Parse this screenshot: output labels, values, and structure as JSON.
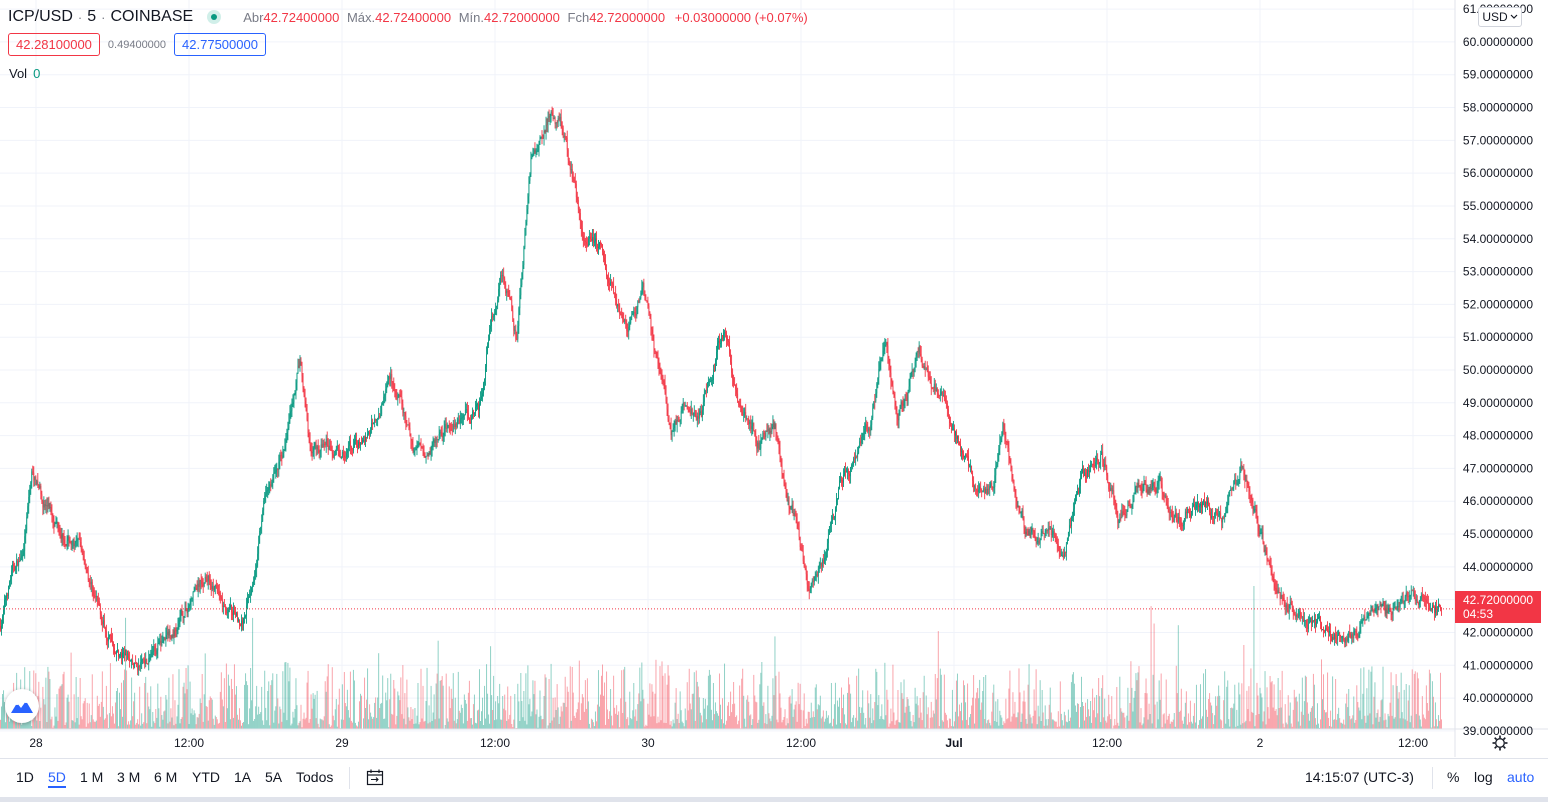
{
  "header": {
    "symbol": "ICP/USD",
    "sep1": "·",
    "interval": "5",
    "sep2": "·",
    "exchange": "COINBASE",
    "open_label": "Abr",
    "open": "42.72400000",
    "high_label": "Máx.",
    "high": "42.72400000",
    "low_label": "Mín.",
    "low": "42.72000000",
    "close_label": "Fch",
    "close": "42.72000000",
    "change": "+0.03000000 (+0.07%)"
  },
  "bid": "42.28100000",
  "spread": "0.49400000",
  "ask": "42.77500000",
  "volume": {
    "label": "Vol",
    "value": "0"
  },
  "currency": "USD",
  "last_price": {
    "value": "42.72000000",
    "countdown": "04:53"
  },
  "bottom": {
    "ranges": [
      "1D",
      "5D",
      "1 M",
      "3 M",
      "6 M",
      "YTD",
      "1A",
      "5A",
      "Todos"
    ],
    "active_range": "5D",
    "time": "14:15:07 (UTC-3)",
    "percent": "%",
    "log": "log",
    "auto": "auto"
  },
  "colors": {
    "up": "#089981",
    "down": "#f23645",
    "accent": "#2962ff"
  },
  "chart_data": {
    "type": "candlestick",
    "y_ticks": [
      "39.00000000",
      "40.00000000",
      "41.00000000",
      "42.00000000",
      "43.00000000",
      "44.00000000",
      "45.00000000",
      "46.00000000",
      "47.00000000",
      "48.00000000",
      "49.00000000",
      "50.00000000",
      "51.00000000",
      "52.00000000",
      "53.00000000",
      "54.00000000",
      "55.00000000",
      "56.00000000",
      "57.00000000",
      "58.00000000",
      "59.00000000",
      "60.00000000",
      "61.00000000"
    ],
    "x_ticks": [
      "28",
      "12:00",
      "29",
      "12:00",
      "30",
      "12:00",
      "Jul",
      "12:00",
      "2",
      "12:00"
    ],
    "ylim": [
      38.6,
      61.4
    ],
    "last_value": 42.72,
    "price_path": [
      [
        0,
        42.2
      ],
      [
        0.8,
        43.8
      ],
      [
        1.5,
        44.3
      ],
      [
        2.2,
        46.9
      ],
      [
        3.0,
        46.0
      ],
      [
        4.3,
        45.2
      ],
      [
        5.7,
        44.3
      ],
      [
        7.0,
        42.4
      ],
      [
        8.3,
        41.2
      ],
      [
        9.3,
        40.9
      ],
      [
        10.7,
        41.6
      ],
      [
        12.2,
        42.2
      ],
      [
        13.2,
        43.2
      ],
      [
        14.2,
        43.7
      ],
      [
        15.3,
        42.7
      ],
      [
        16.5,
        42.3
      ],
      [
        17.2,
        43.7
      ],
      [
        18.0,
        46.0
      ],
      [
        19.4,
        47.7
      ],
      [
        20.4,
        50.3
      ],
      [
        21.1,
        47.5
      ],
      [
        22.2,
        47.8
      ],
      [
        23.6,
        47.5
      ],
      [
        25.2,
        47.9
      ],
      [
        26.6,
        49.9
      ],
      [
        28.1,
        47.6
      ],
      [
        29.7,
        47.9
      ],
      [
        31.4,
        48.7
      ],
      [
        32.6,
        48.8
      ],
      [
        33.4,
        51.2
      ],
      [
        34.2,
        53.1
      ],
      [
        35.2,
        51.0
      ],
      [
        36.2,
        56.6
      ],
      [
        37.4,
        57.8
      ],
      [
        38.3,
        57.5
      ],
      [
        39.6,
        54.3
      ],
      [
        40.9,
        53.8
      ],
      [
        41.5,
        52.8
      ],
      [
        42.8,
        51.2
      ],
      [
        43.8,
        52.3
      ],
      [
        44.9,
        50.2
      ],
      [
        45.7,
        48.2
      ],
      [
        46.6,
        49.0
      ],
      [
        47.8,
        48.7
      ],
      [
        49.3,
        51.4
      ],
      [
        50.3,
        49.0
      ],
      [
        51.7,
        47.8
      ],
      [
        52.8,
        48.3
      ],
      [
        53.4,
        46.5
      ],
      [
        54.4,
        45.0
      ],
      [
        55.1,
        43.2
      ],
      [
        56.2,
        44.3
      ],
      [
        57.2,
        46.5
      ],
      [
        58.4,
        47.5
      ],
      [
        59.3,
        48.2
      ],
      [
        60.3,
        50.9
      ],
      [
        61.1,
        48.4
      ],
      [
        62.6,
        50.5
      ],
      [
        64.0,
        49.3
      ],
      [
        65.5,
        47.6
      ],
      [
        66.4,
        46.5
      ],
      [
        67.6,
        46.2
      ],
      [
        68.3,
        48.2
      ],
      [
        69.1,
        46.4
      ],
      [
        70.0,
        44.8
      ],
      [
        71.5,
        45.1
      ],
      [
        72.4,
        44.2
      ],
      [
        73.6,
        46.7
      ],
      [
        75.0,
        47.4
      ],
      [
        76.2,
        45.5
      ],
      [
        77.6,
        46.6
      ],
      [
        79.0,
        46.5
      ],
      [
        80.2,
        45.5
      ],
      [
        81.6,
        46.0
      ],
      [
        83.2,
        45.4
      ],
      [
        84.5,
        46.8
      ],
      [
        85.4,
        45.5
      ],
      [
        86.5,
        43.8
      ],
      [
        87.6,
        42.9
      ],
      [
        89.4,
        42.3
      ],
      [
        90.4,
        41.8
      ],
      [
        92.1,
        42.1
      ],
      [
        94.0,
        42.6
      ],
      [
        95.7,
        43.0
      ],
      [
        97.2,
        43.1
      ],
      [
        98.2,
        42.72
      ]
    ],
    "candle_count": 1430,
    "volume_range": [
      0,
      100
    ]
  }
}
